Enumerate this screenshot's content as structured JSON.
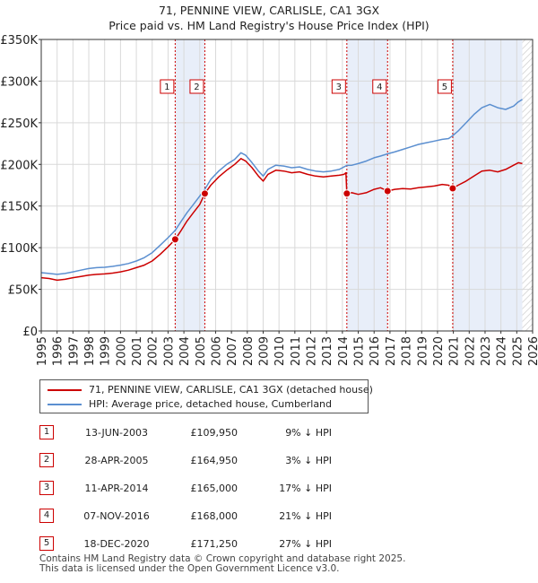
{
  "title_line1": "71, PENNINE VIEW, CARLISLE, CA1 3GX",
  "title_line2": "Price paid vs. HM Land Registry's House Price Index (HPI)",
  "colors": {
    "property": "#cc0000",
    "hpi": "#5b8fd0",
    "shade": "#e8eef9",
    "grid": "#d9d9d9",
    "vline": "#cc0000"
  },
  "chart_data": {
    "type": "line",
    "x_range": [
      1995,
      2026
    ],
    "ylim": [
      0,
      350000
    ],
    "y_ticks": [
      {
        "value": 0,
        "label": "£0"
      },
      {
        "value": 50000,
        "label": "£50K"
      },
      {
        "value": 100000,
        "label": "£100K"
      },
      {
        "value": 150000,
        "label": "£150K"
      },
      {
        "value": 200000,
        "label": "£200K"
      },
      {
        "value": 250000,
        "label": "£250K"
      },
      {
        "value": 300000,
        "label": "£300K"
      },
      {
        "value": 350000,
        "label": "£350K"
      }
    ],
    "x_ticks": [
      "1995",
      "1996",
      "1997",
      "1998",
      "1999",
      "2000",
      "2001",
      "2002",
      "2003",
      "2004",
      "2005",
      "2006",
      "2007",
      "2008",
      "2009",
      "2010",
      "2011",
      "2012",
      "2013",
      "2014",
      "2015",
      "2016",
      "2017",
      "2018",
      "2019",
      "2020",
      "2021",
      "2022",
      "2023",
      "2024",
      "2025",
      "2026"
    ],
    "shaded_ranges": [
      [
        2003.45,
        2005.32
      ],
      [
        2014.28,
        2016.85
      ],
      [
        2020.96,
        2025.35
      ]
    ],
    "hatch_after": 2025.35,
    "series": [
      {
        "name": "71, PENNINE VIEW, CARLISLE, CA1 3GX (detached house)",
        "color": "#cc0000",
        "points": [
          [
            1995.0,
            64000
          ],
          [
            1995.5,
            63000
          ],
          [
            1996.0,
            61000
          ],
          [
            1996.5,
            62000
          ],
          [
            1997.0,
            64000
          ],
          [
            1997.5,
            65500
          ],
          [
            1998.0,
            67000
          ],
          [
            1998.5,
            68000
          ],
          [
            1999.0,
            68500
          ],
          [
            1999.5,
            69500
          ],
          [
            2000.0,
            71000
          ],
          [
            2000.5,
            73000
          ],
          [
            2001.0,
            76000
          ],
          [
            2001.5,
            79000
          ],
          [
            2002.0,
            84000
          ],
          [
            2002.5,
            92000
          ],
          [
            2003.0,
            101000
          ],
          [
            2003.45,
            109950
          ],
          [
            2003.8,
            120000
          ],
          [
            2004.2,
            132000
          ],
          [
            2004.6,
            142000
          ],
          [
            2005.0,
            152000
          ],
          [
            2005.32,
            164950
          ],
          [
            2005.7,
            175000
          ],
          [
            2006.2,
            185000
          ],
          [
            2006.7,
            193000
          ],
          [
            2007.2,
            200000
          ],
          [
            2007.6,
            207000
          ],
          [
            2007.9,
            204000
          ],
          [
            2008.3,
            196000
          ],
          [
            2008.7,
            186000
          ],
          [
            2009.0,
            180000
          ],
          [
            2009.3,
            188000
          ],
          [
            2009.8,
            193000
          ],
          [
            2010.3,
            192000
          ],
          [
            2010.8,
            190000
          ],
          [
            2011.3,
            191000
          ],
          [
            2011.8,
            188000
          ],
          [
            2012.3,
            186000
          ],
          [
            2012.8,
            185000
          ],
          [
            2013.3,
            186000
          ],
          [
            2013.8,
            187000
          ],
          [
            2014.1,
            188000
          ],
          [
            2014.22,
            190000
          ],
          [
            2014.28,
            165000
          ],
          [
            2014.6,
            166000
          ],
          [
            2015.0,
            164000
          ],
          [
            2015.5,
            166000
          ],
          [
            2016.0,
            170000
          ],
          [
            2016.4,
            172000
          ],
          [
            2016.85,
            168000
          ],
          [
            2017.3,
            170000
          ],
          [
            2017.8,
            171000
          ],
          [
            2018.3,
            170500
          ],
          [
            2018.8,
            172000
          ],
          [
            2019.3,
            173000
          ],
          [
            2019.8,
            174000
          ],
          [
            2020.3,
            176000
          ],
          [
            2020.7,
            175000
          ],
          [
            2020.96,
            171250
          ],
          [
            2021.3,
            175000
          ],
          [
            2021.8,
            180000
          ],
          [
            2022.3,
            186000
          ],
          [
            2022.8,
            192000
          ],
          [
            2023.3,
            193000
          ],
          [
            2023.8,
            191000
          ],
          [
            2024.3,
            194000
          ],
          [
            2024.8,
            199000
          ],
          [
            2025.1,
            202000
          ],
          [
            2025.35,
            201000
          ]
        ]
      },
      {
        "name": "HPI: Average price, detached house, Cumberland",
        "color": "#5b8fd0",
        "points": [
          [
            1995.0,
            70000
          ],
          [
            1995.5,
            69000
          ],
          [
            1996.0,
            68000
          ],
          [
            1996.5,
            69000
          ],
          [
            1997.0,
            71000
          ],
          [
            1997.5,
            73000
          ],
          [
            1998.0,
            75000
          ],
          [
            1998.5,
            76000
          ],
          [
            1999.0,
            76500
          ],
          [
            1999.5,
            77500
          ],
          [
            2000.0,
            79000
          ],
          [
            2000.5,
            81000
          ],
          [
            2001.0,
            84000
          ],
          [
            2001.5,
            88000
          ],
          [
            2002.0,
            94000
          ],
          [
            2002.5,
            103000
          ],
          [
            2003.0,
            112000
          ],
          [
            2003.45,
            120800
          ],
          [
            2003.8,
            131000
          ],
          [
            2004.2,
            142000
          ],
          [
            2004.6,
            152000
          ],
          [
            2005.0,
            162000
          ],
          [
            2005.32,
            170000
          ],
          [
            2005.7,
            182000
          ],
          [
            2006.2,
            192000
          ],
          [
            2006.7,
            200000
          ],
          [
            2007.2,
            206000
          ],
          [
            2007.6,
            214000
          ],
          [
            2007.9,
            211000
          ],
          [
            2008.3,
            202000
          ],
          [
            2008.7,
            192000
          ],
          [
            2009.0,
            186000
          ],
          [
            2009.3,
            194000
          ],
          [
            2009.8,
            199000
          ],
          [
            2010.3,
            198000
          ],
          [
            2010.8,
            196000
          ],
          [
            2011.3,
            197000
          ],
          [
            2011.8,
            194000
          ],
          [
            2012.3,
            192000
          ],
          [
            2012.8,
            191000
          ],
          [
            2013.3,
            192000
          ],
          [
            2013.8,
            194000
          ],
          [
            2014.28,
            198800
          ],
          [
            2014.6,
            199000
          ],
          [
            2015.0,
            201000
          ],
          [
            2015.5,
            204000
          ],
          [
            2016.0,
            208000
          ],
          [
            2016.4,
            210000
          ],
          [
            2016.85,
            212700
          ],
          [
            2017.3,
            215000
          ],
          [
            2017.8,
            218000
          ],
          [
            2018.3,
            221000
          ],
          [
            2018.8,
            224000
          ],
          [
            2019.3,
            226000
          ],
          [
            2019.8,
            228000
          ],
          [
            2020.3,
            230000
          ],
          [
            2020.7,
            231000
          ],
          [
            2020.96,
            234600
          ],
          [
            2021.3,
            240000
          ],
          [
            2021.8,
            250000
          ],
          [
            2022.3,
            260000
          ],
          [
            2022.8,
            268000
          ],
          [
            2023.3,
            272000
          ],
          [
            2023.8,
            268000
          ],
          [
            2024.3,
            266000
          ],
          [
            2024.8,
            270000
          ],
          [
            2025.1,
            275000
          ],
          [
            2025.35,
            278000
          ]
        ]
      }
    ],
    "sales": [
      {
        "num": "1",
        "x": 2003.45,
        "price": 109950
      },
      {
        "num": "2",
        "x": 2005.32,
        "price": 164950
      },
      {
        "num": "3",
        "x": 2014.28,
        "price": 165000
      },
      {
        "num": "4",
        "x": 2016.85,
        "price": 168000
      },
      {
        "num": "5",
        "x": 2020.96,
        "price": 171250
      }
    ]
  },
  "legend": {
    "property_label": "71, PENNINE VIEW, CARLISLE, CA1 3GX (detached house)",
    "hpi_label": "HPI: Average price, detached house, Cumberland"
  },
  "sales_table": [
    {
      "num": "1",
      "date": "13-JUN-2003",
      "price": "£109,950",
      "hpi": "9% ↓ HPI"
    },
    {
      "num": "2",
      "date": "28-APR-2005",
      "price": "£164,950",
      "hpi": "3% ↓ HPI"
    },
    {
      "num": "3",
      "date": "11-APR-2014",
      "price": "£165,000",
      "hpi": "17% ↓ HPI"
    },
    {
      "num": "4",
      "date": "07-NOV-2016",
      "price": "£168,000",
      "hpi": "21% ↓ HPI"
    },
    {
      "num": "5",
      "date": "18-DEC-2020",
      "price": "£171,250",
      "hpi": "27% ↓ HPI"
    }
  ],
  "footer": {
    "line1": "Contains HM Land Registry data © Crown copyright and database right 2025.",
    "line2": "This data is licensed under the Open Government Licence v3.0."
  }
}
